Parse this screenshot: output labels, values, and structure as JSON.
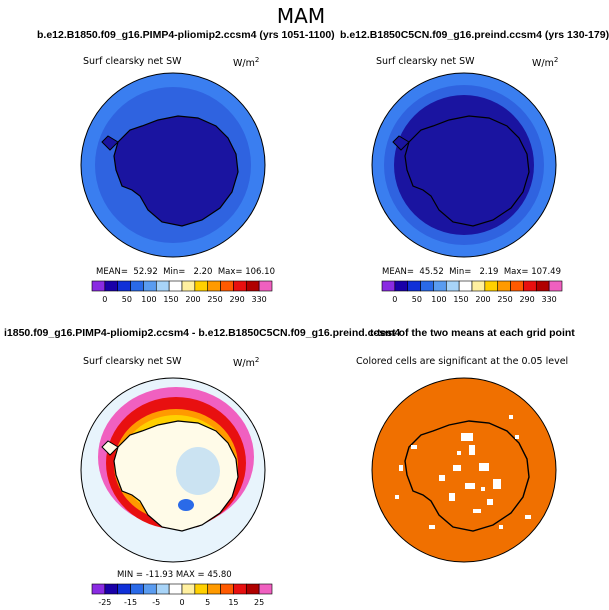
{
  "title": "MAM",
  "panels": [
    {
      "title": "b.e12.B1850.f09_g16.PIMP4-pliomip2.ccsm4 (yrs 1051-1100)",
      "left_label": "Surf clearsky net SW",
      "right_label": "W/m",
      "right_label_sup": "2",
      "stats": [
        "MEAN=",
        "52.92",
        "Min=",
        "2.20",
        "Max=",
        "106.10"
      ]
    },
    {
      "title": "b.e12.B1850C5CN.f09_g16.preind.ccsm4 (yrs 130-179)",
      "left_label": "Surf clearsky net SW",
      "right_label": "W/m",
      "right_label_sup": "2",
      "stats": [
        "MEAN=",
        "45.52",
        "Min=",
        "2.19",
        "Max=",
        "107.49"
      ]
    },
    {
      "title": "i1850.f09_g16.PIMP4-pliomip2.ccsm4 - b.e12.B1850C5CN.f09_g16.preind.ccsm4",
      "left_label": "Surf clearsky net SW",
      "right_label": "W/m",
      "right_label_sup": "2",
      "stats_text": "MIN = -11.93  MAX =  45.80"
    },
    {
      "title": "t-test of the two means at each grid point",
      "left_label": "Colored cells are significant at the 0.05 level"
    }
  ],
  "colorbar_abs": {
    "ticks": [
      "0",
      "50",
      "100",
      "150",
      "200",
      "250",
      "290",
      "330"
    ],
    "colors": [
      "#8a2be2",
      "#1a00a8",
      "#1030d8",
      "#2a6ae8",
      "#5a9cf0",
      "#a8d4f8",
      "#ffffff",
      "#fff0a0",
      "#ffd000",
      "#ff9a00",
      "#ff5a00",
      "#e81010",
      "#b00000",
      "#f060c0"
    ]
  },
  "colorbar_diff": {
    "ticks": [
      "-25",
      "-15",
      "-5",
      "0",
      "5",
      "15",
      "25"
    ],
    "colors": [
      "#8a2be2",
      "#1a00a8",
      "#1030d8",
      "#2a6ae8",
      "#5a9cf0",
      "#a8d4f8",
      "#ffffff",
      "#fff0a0",
      "#ffd000",
      "#ff9a00",
      "#ff5a00",
      "#e81010",
      "#b00000",
      "#f060c0"
    ]
  },
  "colors": {
    "deep_blue": "#1a14a0",
    "mid_blue": "#2f63e0",
    "light_blue": "#3a7ef0",
    "orange": "#f07000"
  }
}
